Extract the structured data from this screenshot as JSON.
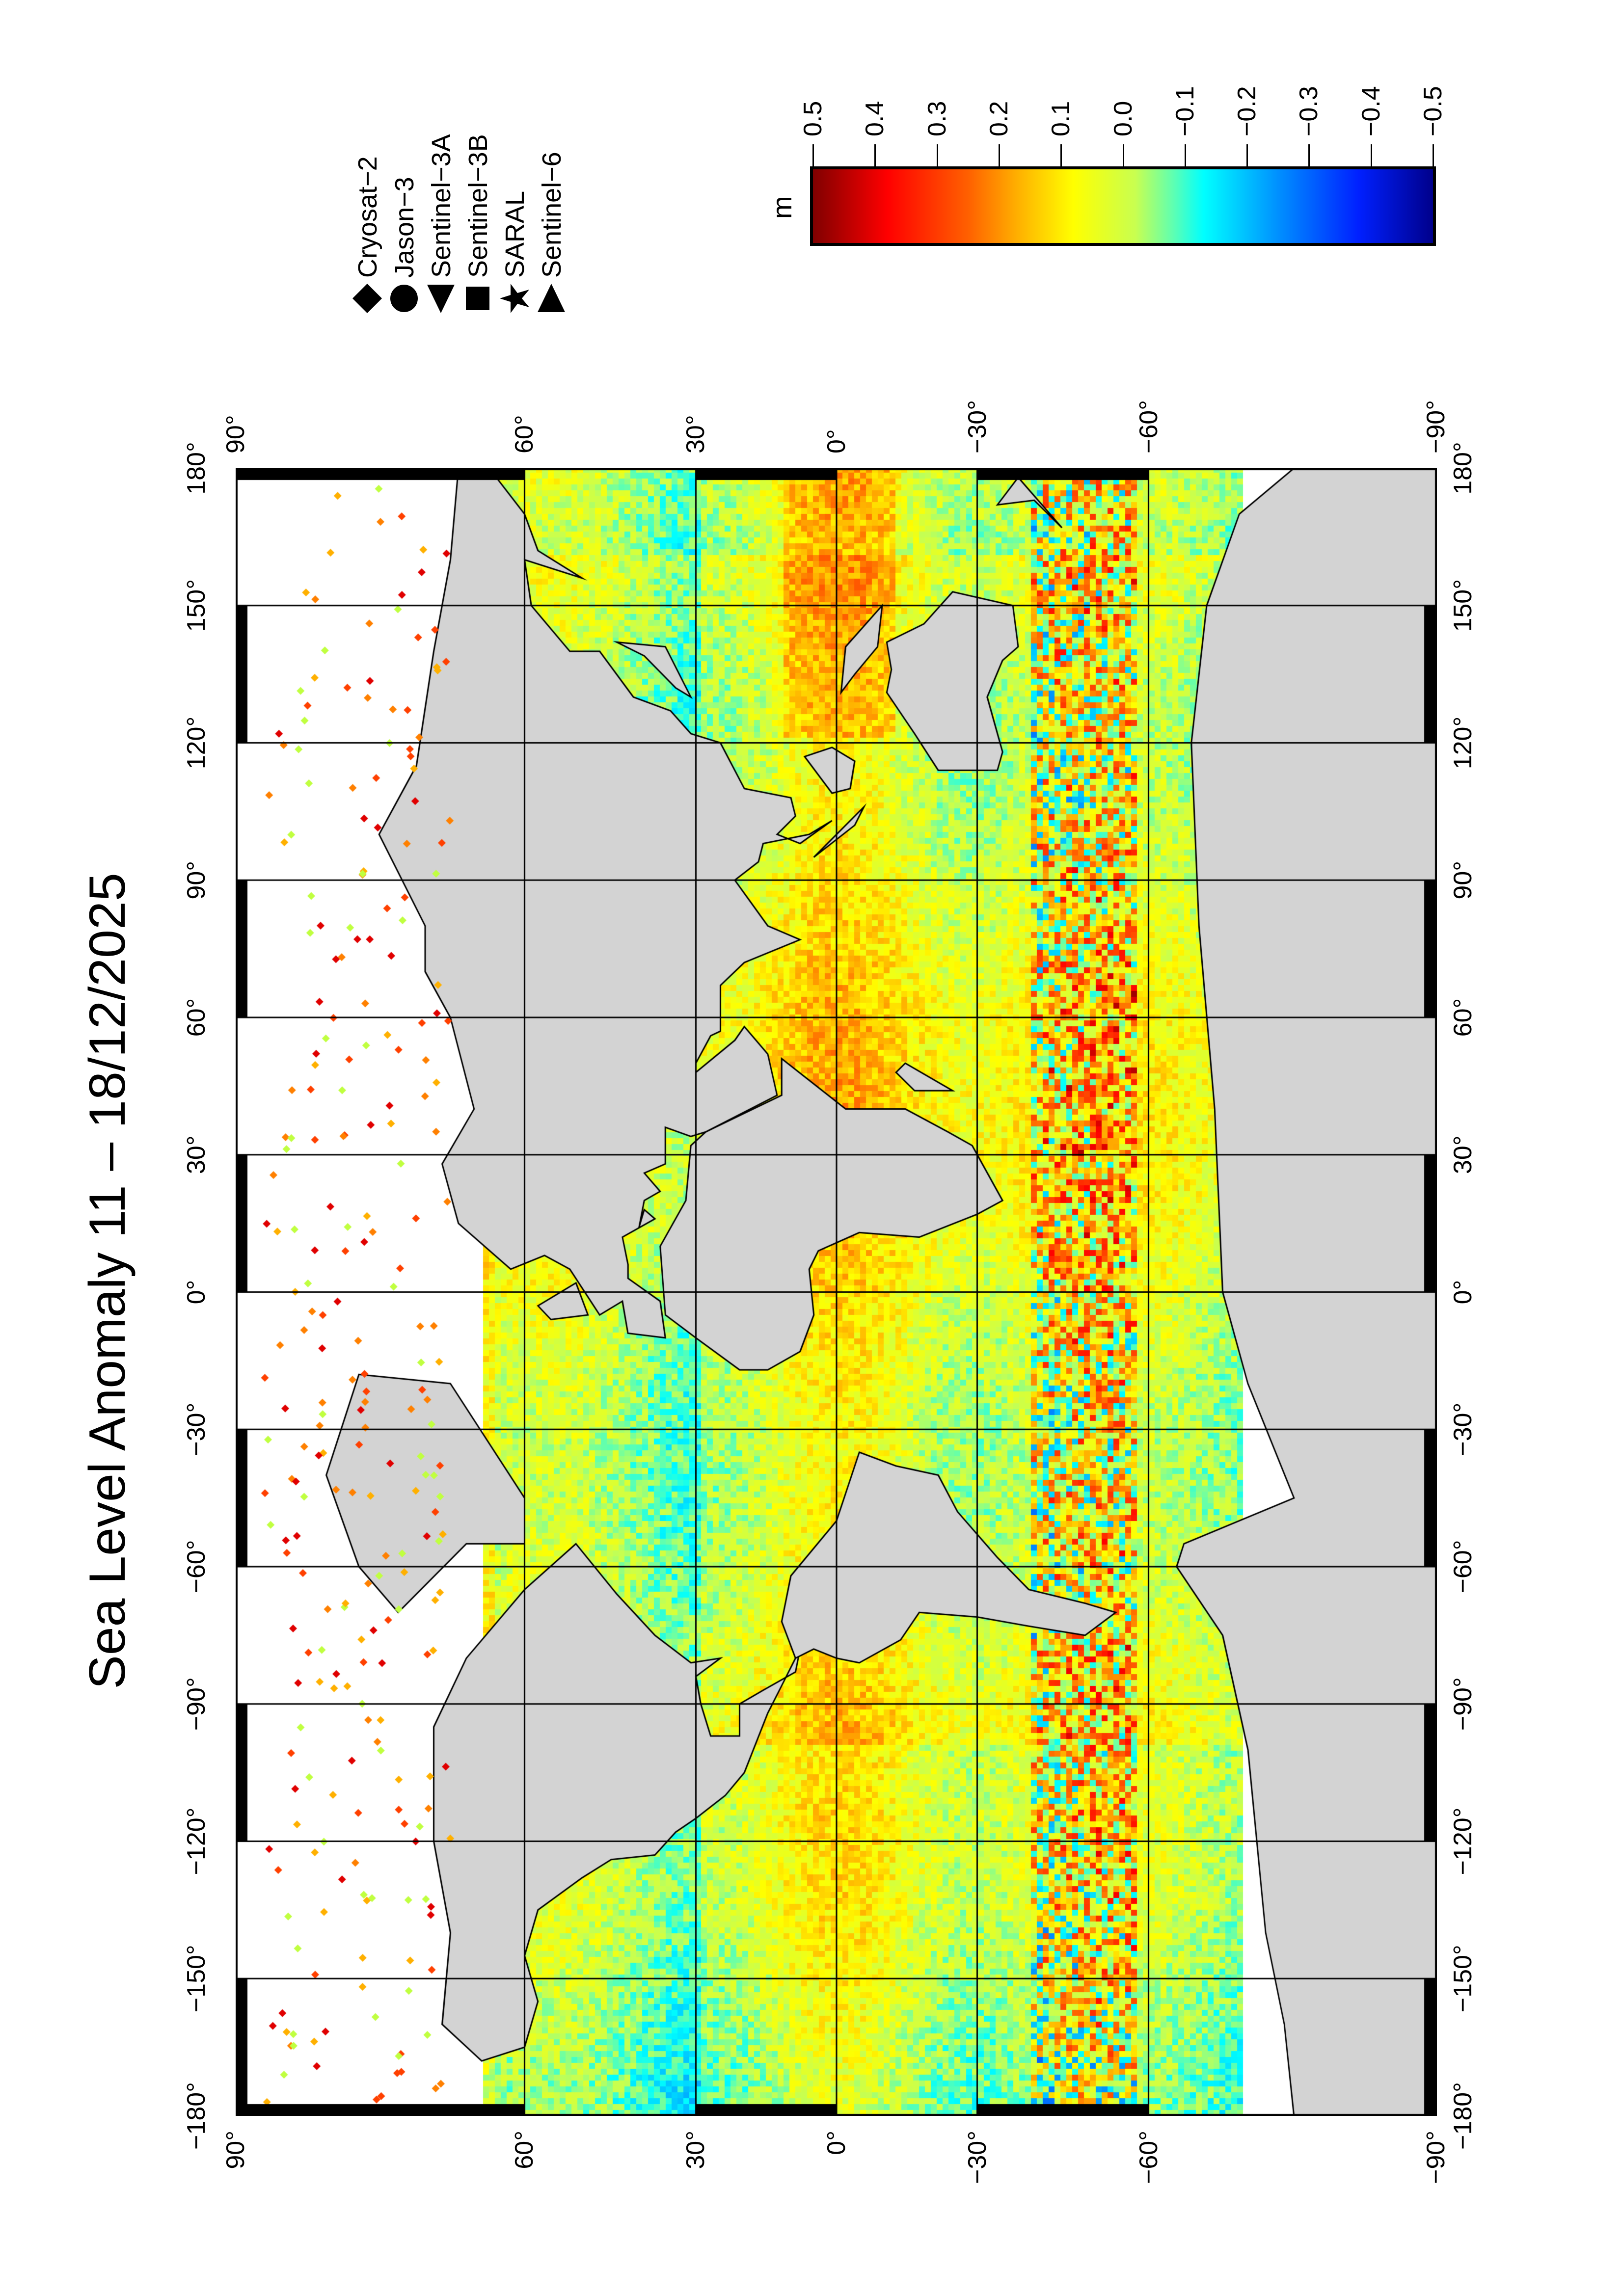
{
  "title": "Sea Level Anomaly 11 – 18/12/2025",
  "map": {
    "projection": "Miller cylindrical",
    "lon_labels": [
      "−180°",
      "−150°",
      "−120°",
      "−90°",
      "−60°",
      "−30°",
      "0°",
      "30°",
      "60°",
      "90°",
      "120°",
      "150°",
      "180°"
    ],
    "lat_labels": [
      "90°",
      "60°",
      "30°",
      "0°",
      "−30°",
      "−60°",
      "−90°"
    ],
    "land_color": "#d3d3d3",
    "no_data_color": "#ffffff",
    "gridlines": true
  },
  "legend": {
    "items": [
      {
        "label": "Cryosat−2",
        "symbol": "diamond"
      },
      {
        "label": "Jason−3",
        "symbol": "circle"
      },
      {
        "label": "Sentinel−3A",
        "symbol": "triangle-left"
      },
      {
        "label": "Sentinel−3B",
        "symbol": "square"
      },
      {
        "label": "SARAL",
        "symbol": "star"
      },
      {
        "label": "Sentinel−6",
        "symbol": "triangle-right"
      }
    ]
  },
  "colorbar": {
    "unit": "m",
    "min": -0.5,
    "max": 0.5,
    "colormap": "jet",
    "tick_labels": [
      "0.5",
      "0.4",
      "0.3",
      "0.2",
      "0.1",
      "0.0",
      "−0.1",
      "−0.2",
      "−0.3",
      "−0.4",
      "−0.5"
    ]
  }
}
